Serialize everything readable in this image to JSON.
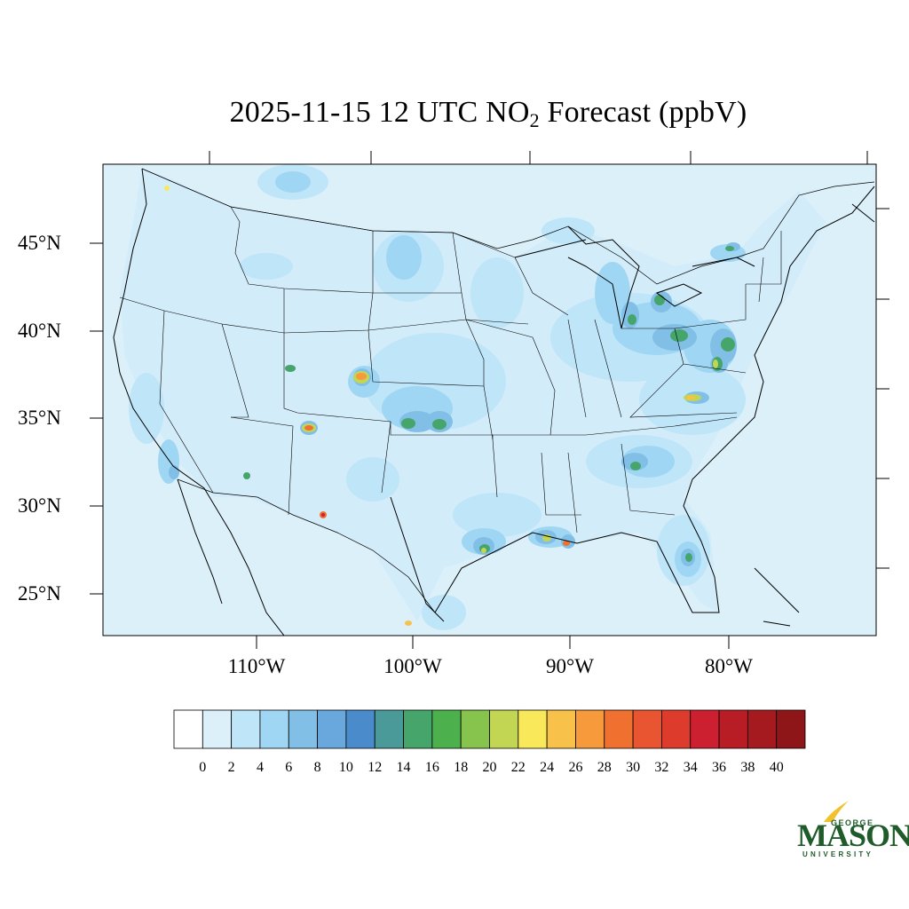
{
  "title": {
    "prefix": "2025-11-15 12 UTC NO",
    "subscript": "2",
    "suffix": "Forecast (ppbV)"
  },
  "lat_labels": [
    "45°N",
    "40°N",
    "35°N",
    "30°N",
    "25°N"
  ],
  "lon_labels": [
    "110°W",
    "100°W",
    "90°W",
    "80°W"
  ],
  "colorbar": {
    "labels": [
      "0",
      "2",
      "4",
      "6",
      "8",
      "10",
      "12",
      "14",
      "16",
      "18",
      "20",
      "22",
      "24",
      "26",
      "28",
      "30",
      "32",
      "34",
      "36",
      "38",
      "40"
    ],
    "colors": [
      "#ffffff",
      "#dcf0fa",
      "#bfe5f8",
      "#9fd6f3",
      "#82bfe6",
      "#68a8dc",
      "#4a8bcb",
      "#4a9a9a",
      "#45a56b",
      "#4cb04c",
      "#86c44d",
      "#c3d654",
      "#f8e85a",
      "#f8c24a",
      "#f69a3c",
      "#f07030",
      "#e85530",
      "#dd3c2c",
      "#cc2030",
      "#b81c24",
      "#a41a1e",
      "#8e1518"
    ]
  },
  "map": {
    "ocean_color": "#dcf0fa",
    "land_base_color": "#dcf0fa"
  },
  "logo": {
    "line1": "GEORGE",
    "line2": "MASON",
    "line3": "UNIVERSITY"
  }
}
